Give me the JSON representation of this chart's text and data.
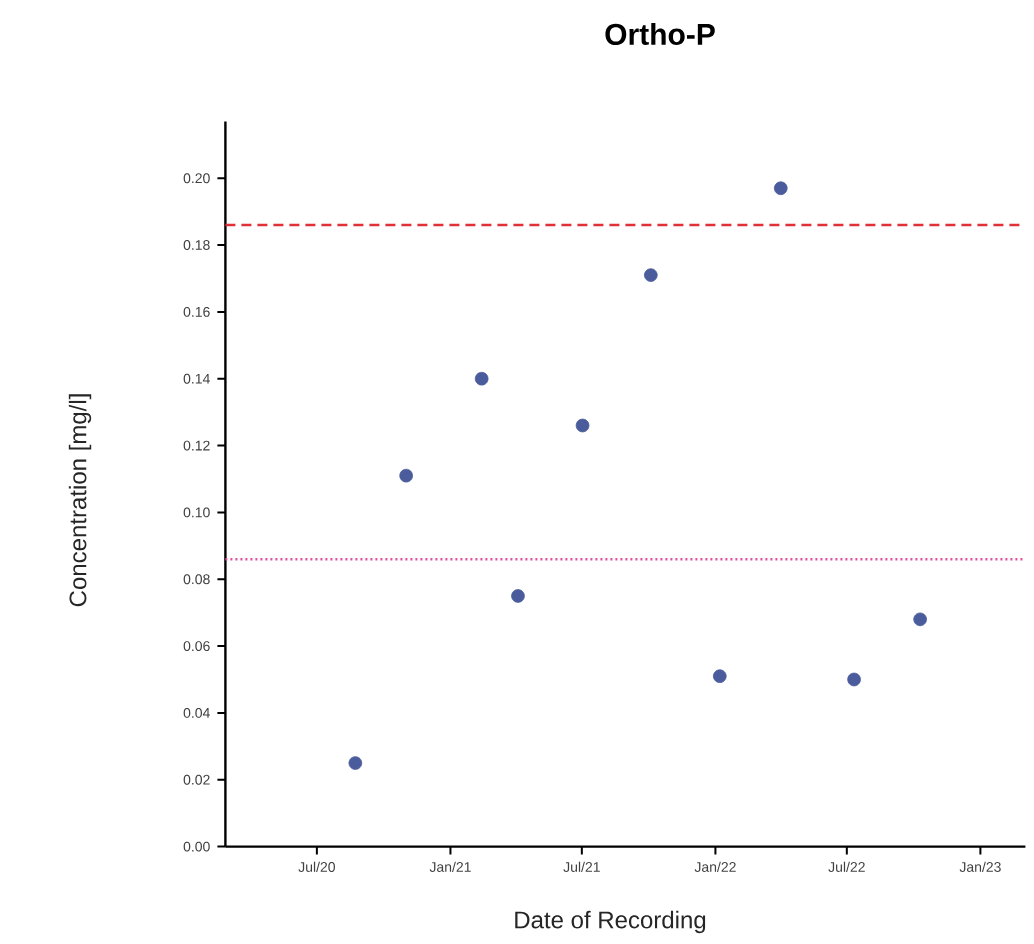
{
  "chart_data": {
    "type": "scatter",
    "title": "Ortho-P",
    "xlabel": "Date of Recording",
    "ylabel": "Concentration [mg/l]",
    "x": [
      "2020-08-23",
      "2020-11-01",
      "2021-02-13",
      "2021-04-04",
      "2021-07-02",
      "2021-10-04",
      "2022-01-07",
      "2022-04-01",
      "2022-07-11",
      "2022-10-10"
    ],
    "values": [
      0.025,
      0.111,
      0.14,
      0.075,
      0.126,
      0.171,
      0.051,
      0.197,
      0.05,
      0.068
    ],
    "color": "#4a5c9c",
    "marker": "circle",
    "grid": false,
    "xlim": [
      "2020-02-26",
      "2023-03-04"
    ],
    "xticks": [
      {
        "value": "2020-07-01",
        "label": "Jul/20"
      },
      {
        "value": "2021-01-01",
        "label": "Jan/21"
      },
      {
        "value": "2021-07-01",
        "label": "Jul/21"
      },
      {
        "value": "2022-01-01",
        "label": "Jan/22"
      },
      {
        "value": "2022-07-01",
        "label": "Jul/22"
      },
      {
        "value": "2023-01-01",
        "label": "Jan/23"
      }
    ],
    "ylim": [
      0,
      0.217
    ],
    "yticks": [
      {
        "value": 0,
        "label": "0.00"
      },
      {
        "value": 0.02,
        "label": "0.02"
      },
      {
        "value": 0.04,
        "label": "0.04"
      },
      {
        "value": 0.06,
        "label": "0.06"
      },
      {
        "value": 0.08,
        "label": "0.08"
      },
      {
        "value": 0.1,
        "label": "0.10"
      },
      {
        "value": 0.12,
        "label": "0.12"
      },
      {
        "value": 0.14,
        "label": "0.14"
      },
      {
        "value": 0.16,
        "label": "0.16"
      },
      {
        "value": 0.18,
        "label": "0.18"
      },
      {
        "value": 0.2,
        "label": "0.20"
      }
    ],
    "ref_lines": [
      {
        "axis": "y",
        "value": 0.186,
        "color": "#e0303a",
        "line_style": "dashed"
      },
      {
        "axis": "y",
        "value": 0.086,
        "color": "#e050a0",
        "line_style": "dotted"
      }
    ]
  }
}
